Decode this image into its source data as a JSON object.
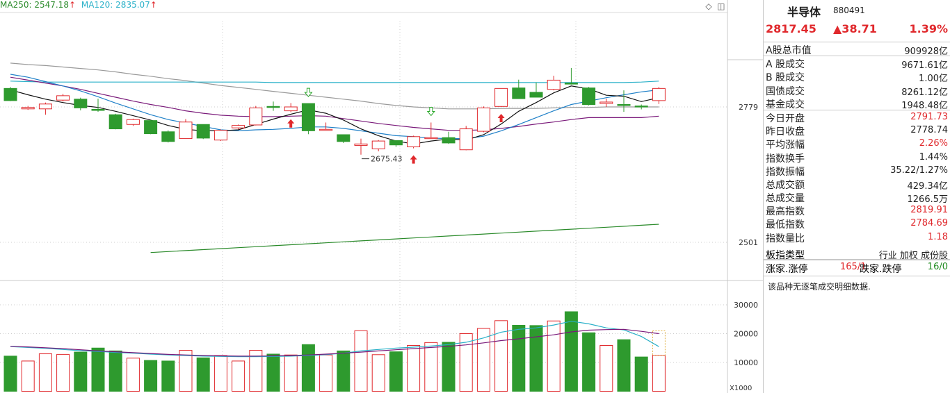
{
  "ma_legend": [
    {
      "label": "MA250: 2547.18",
      "arrow": "↑",
      "color": "#2a8a2a"
    },
    {
      "label": "MA120: 2835.07",
      "arrow": "↑",
      "color": "#29b0c8"
    }
  ],
  "toolbar": {
    "diamond_icon": "◇",
    "panel_icon": "◫"
  },
  "chart_data": [
    {
      "type": "candlestick",
      "title": "",
      "price_axis": {
        "ticks": [
          2779,
          2501
        ]
      },
      "annotations": {
        "low_marker": "2675.43"
      },
      "candles": [
        {
          "o": 2817,
          "h": 2820,
          "l": 2791,
          "c": 2792
        },
        {
          "o": 2775,
          "h": 2781,
          "l": 2773,
          "c": 2778
        },
        {
          "o": 2775,
          "h": 2788,
          "l": 2763,
          "c": 2785
        },
        {
          "o": 2793,
          "h": 2806,
          "l": 2790,
          "c": 2802
        },
        {
          "o": 2795,
          "h": 2798,
          "l": 2772,
          "c": 2777
        },
        {
          "o": 2774,
          "h": 2796,
          "l": 2769,
          "c": 2773
        },
        {
          "o": 2763,
          "h": 2765,
          "l": 2733,
          "c": 2734
        },
        {
          "o": 2743,
          "h": 2755,
          "l": 2740,
          "c": 2753
        },
        {
          "o": 2751,
          "h": 2752,
          "l": 2723,
          "c": 2724
        },
        {
          "o": 2728,
          "h": 2731,
          "l": 2706,
          "c": 2708
        },
        {
          "o": 2714,
          "h": 2754,
          "l": 2714,
          "c": 2748
        },
        {
          "o": 2743,
          "h": 2743,
          "l": 2713,
          "c": 2715
        },
        {
          "o": 2711,
          "h": 2733,
          "l": 2709,
          "c": 2731
        },
        {
          "o": 2736,
          "h": 2743,
          "l": 2733,
          "c": 2741
        },
        {
          "o": 2742,
          "h": 2781,
          "l": 2741,
          "c": 2777
        },
        {
          "o": 2780,
          "h": 2790,
          "l": 2771,
          "c": 2778
        },
        {
          "o": 2771,
          "h": 2787,
          "l": 2768,
          "c": 2779
        },
        {
          "o": 2786,
          "h": 2786,
          "l": 2723,
          "c": 2730
        },
        {
          "o": 2733,
          "h": 2747,
          "l": 2733,
          "c": 2733
        },
        {
          "o": 2722,
          "h": 2722,
          "l": 2705,
          "c": 2708
        },
        {
          "o": 2700,
          "h": 2714,
          "l": 2681,
          "c": 2703
        },
        {
          "o": 2693,
          "h": 2711,
          "l": 2688,
          "c": 2709
        },
        {
          "o": 2710,
          "h": 2710,
          "l": 2697,
          "c": 2701
        },
        {
          "o": 2697,
          "h": 2720,
          "l": 2694,
          "c": 2718
        },
        {
          "o": 2714,
          "h": 2747,
          "l": 2714,
          "c": 2716
        },
        {
          "o": 2716,
          "h": 2728,
          "l": 2703,
          "c": 2705
        },
        {
          "o": 2691,
          "h": 2740,
          "l": 2690,
          "c": 2734
        },
        {
          "o": 2729,
          "h": 2780,
          "l": 2727,
          "c": 2777
        },
        {
          "o": 2780,
          "h": 2817,
          "l": 2779,
          "c": 2817
        },
        {
          "o": 2818,
          "h": 2835,
          "l": 2796,
          "c": 2796
        },
        {
          "o": 2809,
          "h": 2829,
          "l": 2800,
          "c": 2799
        },
        {
          "o": 2815,
          "h": 2843,
          "l": 2813,
          "c": 2834
        },
        {
          "o": 2828,
          "h": 2859,
          "l": 2825,
          "c": 2826
        },
        {
          "o": 2818,
          "h": 2820,
          "l": 2782,
          "c": 2784
        },
        {
          "o": 2786,
          "h": 2796,
          "l": 2779,
          "c": 2789
        },
        {
          "o": 2784,
          "h": 2813,
          "l": 2769,
          "c": 2782
        },
        {
          "o": 2781,
          "h": 2784,
          "l": 2774,
          "c": 2779
        },
        {
          "o": 2792,
          "h": 2820,
          "l": 2785,
          "c": 2817
        }
      ],
      "overlay_lines": [
        {
          "color": "#9a9a9a",
          "values": [
            2869,
            2866,
            2864,
            2861,
            2858,
            2855,
            2851,
            2846,
            2842,
            2837,
            2833,
            2828,
            2823,
            2819,
            2815,
            2811,
            2807,
            2803,
            2799,
            2795,
            2791,
            2786,
            2782,
            2779,
            2777,
            2775,
            2775,
            2775,
            2776,
            2776,
            2776,
            2777,
            2778,
            2778,
            2779,
            2779,
            2779,
            2779
          ]
        },
        {
          "color": "#29b0c8",
          "values": [
            2832,
            2831,
            2830,
            2830,
            2830,
            2830,
            2830,
            2830,
            2830,
            2830,
            2830,
            2830,
            2830,
            2830,
            2830,
            2829,
            2829,
            2829,
            2829,
            2829,
            2829,
            2829,
            2829,
            2829,
            2829,
            2829,
            2829,
            2829,
            2829,
            2829,
            2829,
            2829,
            2829,
            2829,
            2829,
            2829,
            2830,
            2832
          ]
        },
        {
          "color": "#2a8a2a",
          "values": [
            null,
            null,
            null,
            null,
            null,
            null,
            null,
            null,
            2480,
            2482,
            2484,
            2486,
            2488,
            2490,
            2492,
            2494,
            2496,
            2498,
            2500,
            2502,
            2504,
            2506,
            2508,
            2510,
            2512,
            2514,
            2516,
            2518,
            2520,
            2522,
            2524,
            2526,
            2528,
            2530,
            2532,
            2534,
            2536,
            2538
          ]
        },
        {
          "color": "#7a1a7a",
          "values": [
            2840,
            2834,
            2828,
            2822,
            2815,
            2807,
            2799,
            2791,
            2784,
            2778,
            2771,
            2766,
            2762,
            2760,
            2759,
            2759,
            2760,
            2761,
            2760,
            2755,
            2750,
            2745,
            2741,
            2737,
            2734,
            2731,
            2731,
            2732,
            2735,
            2739,
            2744,
            2748,
            2753,
            2757,
            2757,
            2757,
            2757,
            2760
          ]
        },
        {
          "color": "#1f80c8",
          "values": [
            2846,
            2840,
            2831,
            2822,
            2812,
            2800,
            2787,
            2775,
            2763,
            2753,
            2746,
            2739,
            2732,
            2730,
            2732,
            2733,
            2735,
            2738,
            2738,
            2735,
            2730,
            2725,
            2720,
            2718,
            2715,
            2714,
            2714,
            2719,
            2730,
            2743,
            2757,
            2771,
            2784,
            2791,
            2798,
            2804,
            2810,
            2814
          ]
        },
        {
          "color": "#111111",
          "values": [
            2814,
            2804,
            2795,
            2788,
            2782,
            2778,
            2770,
            2761,
            2752,
            2741,
            2733,
            2730,
            2730,
            2732,
            2743,
            2754,
            2764,
            2773,
            2766,
            2752,
            2734,
            2720,
            2709,
            2703,
            2709,
            2713,
            2711,
            2722,
            2744,
            2770,
            2788,
            2808,
            2822,
            2816,
            2803,
            2801,
            2790,
            2798
          ]
        }
      ],
      "signals": {
        "up_arrows": [
          16,
          23,
          28
        ],
        "down_arrows": [
          17,
          24
        ]
      }
    },
    {
      "type": "bar",
      "title": "",
      "unit_label": "X1000",
      "y_ticks": [
        30000,
        20000,
        10000
      ],
      "ylim": [
        0,
        32000
      ],
      "values": [
        12200,
        10500,
        13000,
        12800,
        13600,
        15000,
        14000,
        11500,
        10700,
        10500,
        14200,
        11600,
        12400,
        10500,
        14200,
        12900,
        12600,
        16200,
        12600,
        14000,
        21000,
        12700,
        13700,
        15900,
        16900,
        17000,
        20000,
        21800,
        24500,
        22900,
        22800,
        24400,
        27600,
        20300,
        15900,
        17900,
        11900,
        12500
      ],
      "avg_lines": [
        {
          "color": "#29b0c8",
          "values": [
            15500,
            15200,
            14900,
            14500,
            14100,
            13800,
            13500,
            13200,
            12900,
            12600,
            12400,
            12200,
            12100,
            12000,
            12000,
            12100,
            12200,
            12400,
            12700,
            13200,
            14000,
            14500,
            15000,
            15300,
            15700,
            16200,
            17000,
            18500,
            20500,
            21500,
            22000,
            23000,
            24300,
            23400,
            22000,
            21300,
            19000,
            15500
          ]
        },
        {
          "color": "#7a1a7a",
          "values": [
            15600,
            15400,
            15100,
            14800,
            14400,
            14000,
            13700,
            13400,
            13100,
            12800,
            12600,
            12400,
            12300,
            12200,
            12200,
            12300,
            12400,
            12600,
            12900,
            13200,
            13600,
            14000,
            14400,
            14800,
            15200,
            15600,
            16100,
            16800,
            17600,
            18200,
            18900,
            19600,
            20600,
            21200,
            21400,
            21500,
            20800,
            20000
          ]
        }
      ]
    }
  ],
  "side_panel": {
    "name": "半导体",
    "code": "880491",
    "price": "2817.45",
    "change": "▲38.71",
    "change_pct": "1.39%",
    "rows": [
      {
        "label": "A股总市值",
        "value": "909928亿",
        "red": false,
        "sep": true
      },
      {
        "label": "A 股成交",
        "value": "9671.61亿",
        "red": false
      },
      {
        "label": "B 股成交",
        "value": "1.00亿",
        "red": false
      },
      {
        "label": "国债成交",
        "value": "8261.12亿",
        "red": false
      },
      {
        "label": "基金成交",
        "value": "1948.48亿",
        "red": false,
        "sep": true
      },
      {
        "label": "今日开盘",
        "value": "2791.73",
        "red": true
      },
      {
        "label": "昨日收盘",
        "value": "2778.74",
        "red": false
      },
      {
        "label": "平均涨幅",
        "value": "2.26%",
        "red": true
      },
      {
        "label": "指数换手",
        "value": "1.44%",
        "red": false
      },
      {
        "label": "指数振幅",
        "value": "35.22/1.27%",
        "red": false
      },
      {
        "label": "总成交额",
        "value": "429.34亿",
        "red": false
      },
      {
        "label": "总成交量",
        "value": "1266.5万",
        "red": false
      },
      {
        "label": "最高指数",
        "value": "2819.91",
        "red": true
      },
      {
        "label": "最低指数",
        "value": "2784.69",
        "red": true
      },
      {
        "label": "指数量比",
        "value": "1.18",
        "red": true
      }
    ],
    "type_label": "板指类型",
    "type_value": "行业 加权 成份股",
    "up_label": "涨家.涨停",
    "up_value": "165/1",
    "down_label": "跌家.跌停",
    "down_value": "16/0",
    "note": "该品种无逐笔成交明细数据."
  }
}
